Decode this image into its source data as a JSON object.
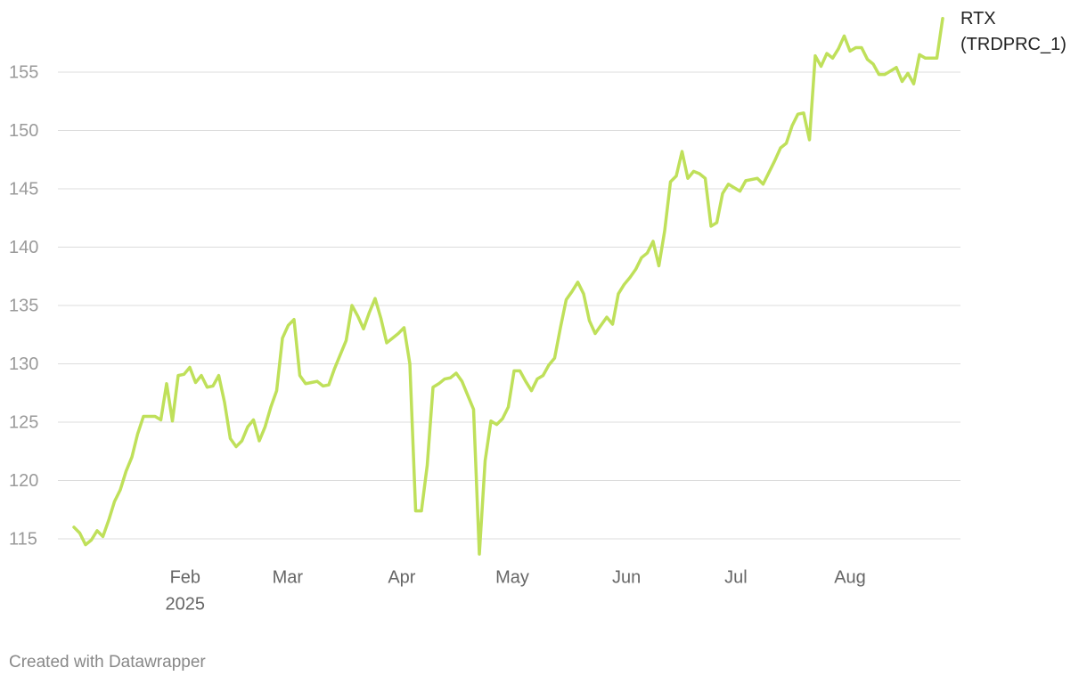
{
  "chart_data": {
    "type": "line",
    "footer": "Created with Datawrapper",
    "x_year_label": "2025",
    "xlim": [
      0,
      150
    ],
    "xticks": [
      {
        "value": 19.2,
        "label": "Feb"
      },
      {
        "value": 36.9,
        "label": "Mar"
      },
      {
        "value": 56.6,
        "label": "Apr"
      },
      {
        "value": 75.7,
        "label": "May"
      },
      {
        "value": 95.4,
        "label": "Jun"
      },
      {
        "value": 114.3,
        "label": "Jul"
      },
      {
        "value": 134.0,
        "label": "Aug"
      }
    ],
    "ylim": [
      113.5,
      160
    ],
    "yticks": [
      115,
      120,
      125,
      130,
      135,
      140,
      145,
      150,
      155
    ],
    "grid": true,
    "series": [
      {
        "name": "RTX (TRDPRC_1)",
        "color": "#bfe05a",
        "values": [
          116.0,
          115.5,
          114.5,
          114.9,
          115.7,
          115.2,
          116.6,
          118.2,
          119.2,
          120.8,
          122.0,
          124.0,
          125.5,
          125.5,
          125.5,
          125.2,
          128.3,
          125.1,
          129.0,
          129.1,
          129.7,
          128.4,
          129.0,
          128.0,
          128.1,
          129.0,
          126.7,
          123.6,
          122.9,
          123.4,
          124.6,
          125.2,
          123.4,
          124.6,
          126.3,
          127.7,
          132.2,
          133.3,
          133.8,
          129.0,
          128.3,
          128.4,
          128.5,
          128.1,
          128.2,
          129.6,
          130.8,
          132.0,
          135.0,
          134.1,
          133.0,
          134.4,
          135.6,
          133.9,
          131.8,
          132.2,
          132.6,
          133.1,
          130.0,
          117.4,
          117.4,
          121.3,
          128.0,
          128.3,
          128.7,
          128.8,
          129.2,
          128.5,
          127.3,
          126.1,
          113.7,
          121.7,
          125.1,
          124.8,
          125.3,
          126.3,
          129.4,
          129.4,
          128.5,
          127.7,
          128.7,
          129.0,
          129.9,
          130.5,
          133.1,
          135.5,
          136.2,
          137.0,
          136.0,
          133.7,
          132.6,
          133.3,
          134.0,
          133.4,
          136.0,
          136.8,
          137.4,
          138.1,
          139.1,
          139.5,
          140.5,
          138.4,
          141.4,
          145.6,
          146.1,
          148.2,
          145.9,
          146.5,
          146.3,
          145.9,
          141.8,
          142.1,
          144.6,
          145.4,
          145.1,
          144.8,
          145.7,
          145.8,
          145.9,
          145.4,
          146.4,
          147.4,
          148.5,
          148.9,
          150.4,
          151.4,
          151.5,
          149.2,
          156.4,
          155.5,
          156.6,
          156.2,
          157.0,
          158.1,
          156.8,
          157.1,
          157.1,
          156.1,
          155.7,
          154.8,
          154.8,
          155.1,
          155.4,
          154.2,
          154.9,
          154.0,
          156.5,
          156.2,
          156.2,
          156.2,
          159.6
        ]
      }
    ]
  }
}
